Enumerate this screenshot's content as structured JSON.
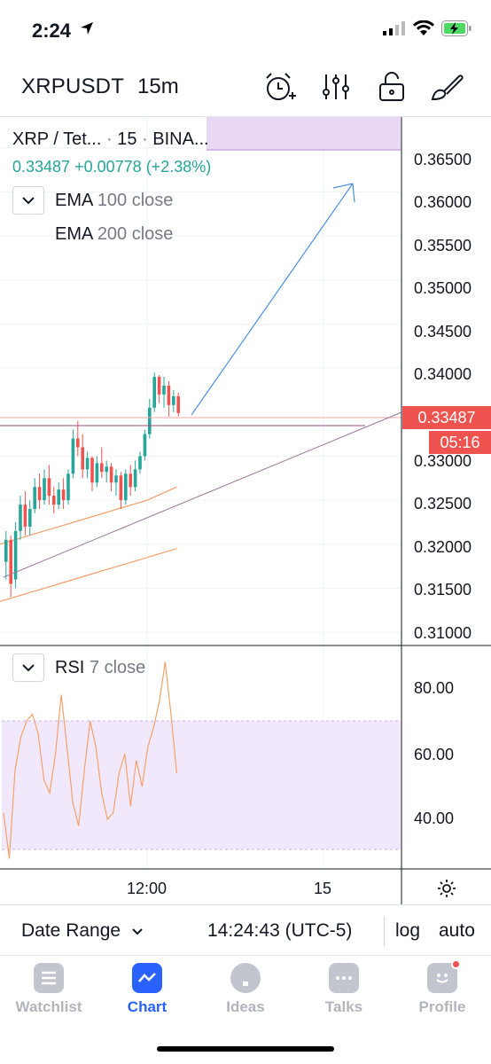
{
  "status_bar": {
    "time": "2:24",
    "icons": [
      "location-arrow-icon",
      "cellular-signal-icon",
      "wifi-icon",
      "battery-charging-icon"
    ]
  },
  "header": {
    "symbol": "XRPUSDT",
    "interval": "15m",
    "icons": [
      "alert-clock-icon",
      "indicators-sliders-icon",
      "unlock-icon",
      "drawing-brush-icon"
    ]
  },
  "legend": {
    "symbol_short": "XRP / Tet...",
    "interval": "15",
    "exchange": "BINA...",
    "price": "0.33487",
    "change": "+0.00778",
    "change_pct": "(+2.38%)",
    "ema1_name": "EMA",
    "ema1_params": "100 close",
    "ema2_name": "EMA",
    "ema2_params": "200 close"
  },
  "price_axis": {
    "ticks": [
      "0.36500",
      "0.36000",
      "0.35500",
      "0.35000",
      "0.34500",
      "0.34000",
      "0.33000",
      "0.32500",
      "0.32000",
      "0.31500",
      "0.31000"
    ],
    "current_price": "0.33487",
    "countdown": "05:16"
  },
  "rsi": {
    "name": "RSI",
    "params": "7 close",
    "ticks": [
      "80.00",
      "60.00",
      "40.00"
    ],
    "band_upper": 70,
    "band_lower": 30
  },
  "time_axis": {
    "ticks": [
      "12:00",
      "15"
    ]
  },
  "range_bar": {
    "date_range_label": "Date Range",
    "clock": "14:24:43 (UTC-5)",
    "log_label": "log",
    "auto_label": "auto"
  },
  "tabs": [
    {
      "label": "Watchlist",
      "icon": "list-icon",
      "active": false
    },
    {
      "label": "Chart",
      "icon": "chart-line-icon",
      "active": true
    },
    {
      "label": "Ideas",
      "icon": "lightbulb-icon",
      "active": false
    },
    {
      "label": "Talks",
      "icon": "chat-bubble-icon",
      "active": false
    },
    {
      "label": "Profile",
      "icon": "profile-smiley-icon",
      "active": false
    }
  ],
  "colors": {
    "up": "#26a69a",
    "down": "#ef5350",
    "accent": "#2962ff",
    "ema": "#f5a06b",
    "rsi_band": "#f1e9fb"
  },
  "chart_data": {
    "type": "candlestick",
    "price_range": [
      0.3085,
      0.3685
    ],
    "last_price": 0.33487,
    "candles_ohlc": [
      [
        0.318,
        0.3215,
        0.316,
        0.3205
      ],
      [
        0.3205,
        0.321,
        0.314,
        0.3155
      ],
      [
        0.316,
        0.3225,
        0.315,
        0.3215
      ],
      [
        0.3215,
        0.3255,
        0.3205,
        0.3245
      ],
      [
        0.3245,
        0.326,
        0.321,
        0.322
      ],
      [
        0.322,
        0.325,
        0.321,
        0.324
      ],
      [
        0.324,
        0.3275,
        0.3235,
        0.3265
      ],
      [
        0.3265,
        0.328,
        0.324,
        0.325
      ],
      [
        0.325,
        0.3285,
        0.3245,
        0.3275
      ],
      [
        0.3275,
        0.329,
        0.3245,
        0.3255
      ],
      [
        0.3255,
        0.3265,
        0.3235,
        0.3245
      ],
      [
        0.3245,
        0.327,
        0.324,
        0.3262
      ],
      [
        0.3262,
        0.3275,
        0.324,
        0.325
      ],
      [
        0.325,
        0.3285,
        0.3245,
        0.328
      ],
      [
        0.328,
        0.333,
        0.3275,
        0.332
      ],
      [
        0.332,
        0.334,
        0.33,
        0.331
      ],
      [
        0.331,
        0.3325,
        0.3275,
        0.3285
      ],
      [
        0.3285,
        0.3305,
        0.3275,
        0.3298
      ],
      [
        0.3298,
        0.33,
        0.326,
        0.327
      ],
      [
        0.327,
        0.33,
        0.3265,
        0.3292
      ],
      [
        0.3292,
        0.331,
        0.3275,
        0.3282
      ],
      [
        0.3282,
        0.3295,
        0.327,
        0.3288
      ],
      [
        0.3288,
        0.3292,
        0.326,
        0.327
      ],
      [
        0.327,
        0.3285,
        0.3255,
        0.3278
      ],
      [
        0.3278,
        0.3282,
        0.324,
        0.325
      ],
      [
        0.325,
        0.3285,
        0.3245,
        0.328
      ],
      [
        0.328,
        0.329,
        0.3255,
        0.3265
      ],
      [
        0.3265,
        0.3295,
        0.326,
        0.3285
      ],
      [
        0.3285,
        0.3305,
        0.328,
        0.33
      ],
      [
        0.33,
        0.333,
        0.3295,
        0.3325
      ],
      [
        0.3325,
        0.3365,
        0.332,
        0.3355
      ],
      [
        0.3355,
        0.3395,
        0.335,
        0.339
      ],
      [
        0.339,
        0.3392,
        0.336,
        0.337
      ],
      [
        0.337,
        0.339,
        0.3355,
        0.338
      ],
      [
        0.338,
        0.3385,
        0.3345,
        0.3358
      ],
      [
        0.3358,
        0.3375,
        0.335,
        0.3368
      ],
      [
        0.3368,
        0.3372,
        0.3345,
        0.3349
      ]
    ],
    "ema_series": [
      {
        "name": "EMA 100 close",
        "values": [
          0.32,
          0.321,
          0.322,
          0.323,
          0.324,
          0.325,
          0.3265
        ]
      },
      {
        "name": "EMA 200 close",
        "values": [
          0.3135,
          0.3145,
          0.3155,
          0.3165,
          0.3175,
          0.3185,
          0.3195
        ]
      }
    ],
    "rsi_series": [
      42,
      28,
      55,
      65,
      70,
      72,
      66,
      52,
      48,
      60,
      78,
      62,
      45,
      38,
      55,
      70,
      62,
      48,
      40,
      42,
      54,
      60,
      44,
      58,
      50,
      62,
      68,
      76,
      88,
      72,
      54
    ]
  }
}
